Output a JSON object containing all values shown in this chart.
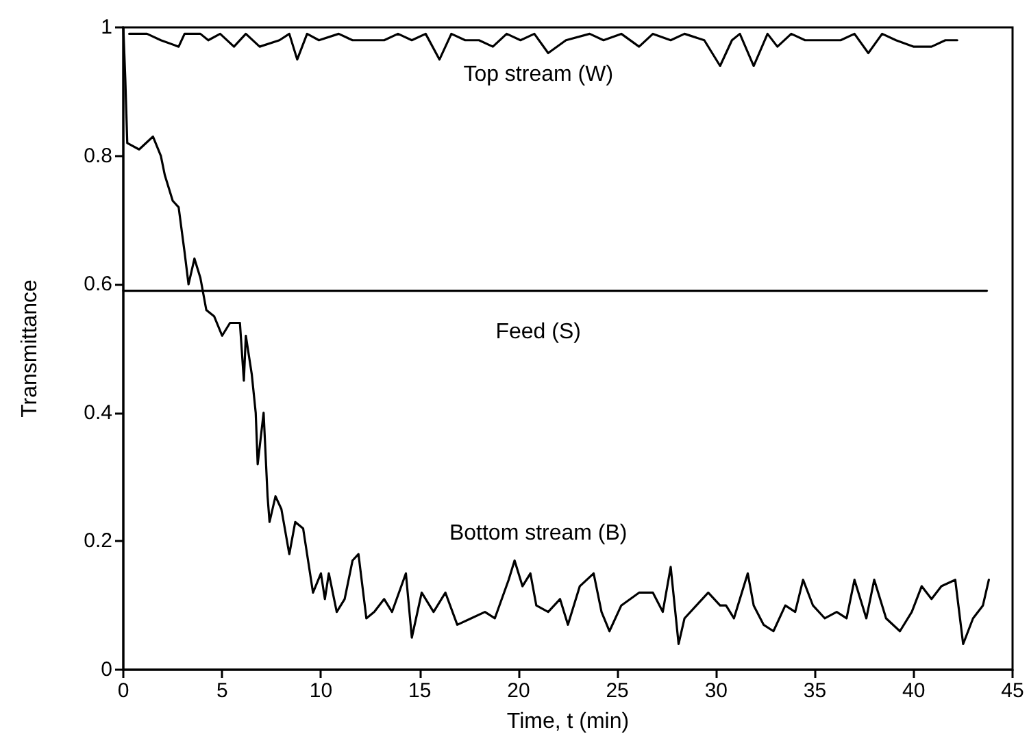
{
  "chart_data": {
    "type": "line",
    "xlabel": "Time, t (min)",
    "ylabel": "Transmittance",
    "xlim": [
      0,
      45
    ],
    "xticks": [
      0,
      5,
      10,
      15,
      20,
      25,
      30,
      35,
      40,
      45
    ],
    "ylim": [
      0,
      1
    ],
    "yticks": [
      0,
      0.2,
      0.4,
      0.6,
      0.8,
      1
    ],
    "grid": false,
    "marker": "none",
    "line_style": "solid",
    "series": [
      {
        "name": "Top stream (W)",
        "color": "#000000",
        "x": [
          0.3,
          1.2,
          1.9,
          2.8,
          3.1,
          3.9,
          4.3,
          4.9,
          5.6,
          6.2,
          6.9,
          7.9,
          8.4,
          8.8,
          9.3,
          9.9,
          10.9,
          11.6,
          12.3,
          13.2,
          13.9,
          14.6,
          15.3,
          16.0,
          16.6,
          17.3,
          18.0,
          18.7,
          19.4,
          20.1,
          20.8,
          21.5,
          22.4,
          23.6,
          24.3,
          25.2,
          26.1,
          26.8,
          27.7,
          28.4,
          29.4,
          30.2,
          30.8,
          31.2,
          31.9,
          32.6,
          33.1,
          33.8,
          34.5,
          35.4,
          36.3,
          37.0,
          37.7,
          38.4,
          39.1,
          40.0,
          40.9,
          41.6,
          42.2
        ],
        "values": [
          0.99,
          0.99,
          0.98,
          0.97,
          0.99,
          0.99,
          0.98,
          0.99,
          0.97,
          0.99,
          0.97,
          0.98,
          0.99,
          0.95,
          0.99,
          0.98,
          0.99,
          0.98,
          0.98,
          0.98,
          0.99,
          0.98,
          0.99,
          0.95,
          0.99,
          0.98,
          0.98,
          0.97,
          0.99,
          0.98,
          0.99,
          0.96,
          0.98,
          0.99,
          0.98,
          0.99,
          0.97,
          0.99,
          0.98,
          0.99,
          0.98,
          0.94,
          0.98,
          0.99,
          0.94,
          0.99,
          0.97,
          0.99,
          0.98,
          0.98,
          0.98,
          0.99,
          0.96,
          0.99,
          0.98,
          0.97,
          0.97,
          0.98,
          0.98
        ]
      },
      {
        "name": "Feed (S)",
        "color": "#000000",
        "x": [
          0,
          43.7
        ],
        "values": [
          0.59,
          0.59
        ]
      },
      {
        "name": "Bottom stream (B)",
        "color": "#000000",
        "x": [
          0,
          0.1,
          0.2,
          0.8,
          1.5,
          1.9,
          2.1,
          2.5,
          2.8,
          3.1,
          3.3,
          3.6,
          3.9,
          4.2,
          4.6,
          5.0,
          5.4,
          5.9,
          6.1,
          6.2,
          6.5,
          6.7,
          6.8,
          7.1,
          7.3,
          7.4,
          7.7,
          8.0,
          8.4,
          8.7,
          9.1,
          9.6,
          10.0,
          10.2,
          10.4,
          10.8,
          11.2,
          11.6,
          11.9,
          12.3,
          12.7,
          13.2,
          13.6,
          14.3,
          14.6,
          15.1,
          15.7,
          16.3,
          16.9,
          17.6,
          18.3,
          18.8,
          19.5,
          19.8,
          20.2,
          20.6,
          20.9,
          21.5,
          22.1,
          22.5,
          23.1,
          23.8,
          24.2,
          24.6,
          25.2,
          26.1,
          26.8,
          27.3,
          27.7,
          28.1,
          28.4,
          29.0,
          29.6,
          30.2,
          30.5,
          30.9,
          31.6,
          31.9,
          32.4,
          32.9,
          33.5,
          34.0,
          34.4,
          34.9,
          35.5,
          36.1,
          36.6,
          37.0,
          37.6,
          38.0,
          38.6,
          39.3,
          39.9,
          40.4,
          40.9,
          41.4,
          42.1,
          42.5,
          43.0,
          43.5,
          43.8
        ],
        "values": [
          1.0,
          0.92,
          0.82,
          0.81,
          0.83,
          0.8,
          0.77,
          0.73,
          0.72,
          0.65,
          0.6,
          0.64,
          0.61,
          0.56,
          0.55,
          0.52,
          0.54,
          0.54,
          0.45,
          0.52,
          0.46,
          0.4,
          0.32,
          0.4,
          0.27,
          0.23,
          0.27,
          0.25,
          0.18,
          0.23,
          0.22,
          0.12,
          0.15,
          0.11,
          0.15,
          0.09,
          0.11,
          0.17,
          0.18,
          0.08,
          0.09,
          0.11,
          0.09,
          0.15,
          0.05,
          0.12,
          0.09,
          0.12,
          0.07,
          0.08,
          0.09,
          0.08,
          0.14,
          0.17,
          0.13,
          0.15,
          0.1,
          0.09,
          0.11,
          0.07,
          0.13,
          0.15,
          0.09,
          0.06,
          0.1,
          0.12,
          0.12,
          0.09,
          0.16,
          0.04,
          0.08,
          0.1,
          0.12,
          0.1,
          0.1,
          0.08,
          0.15,
          0.1,
          0.07,
          0.06,
          0.1,
          0.09,
          0.14,
          0.1,
          0.08,
          0.09,
          0.08,
          0.14,
          0.08,
          0.14,
          0.08,
          0.06,
          0.09,
          0.13,
          0.11,
          0.13,
          0.14,
          0.04,
          0.08,
          0.1,
          0.14
        ]
      }
    ]
  }
}
